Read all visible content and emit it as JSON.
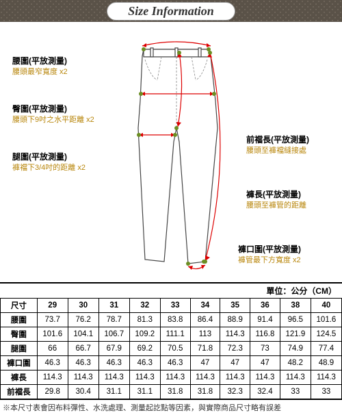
{
  "header": {
    "title": "Size Information"
  },
  "labels": {
    "waist": {
      "cn": "腰圍(平放測量)",
      "desc": "腰頭最窄寬度 x2"
    },
    "hip": {
      "cn": "臀圍(平放測量)",
      "desc": "腰頭下9吋之水平距離 x2"
    },
    "thigh": {
      "cn": "腿圍(平放測量)",
      "desc": "褲襠下3/4吋的距離 x2"
    },
    "rise": {
      "cn": "前襠長(平放測量)",
      "desc": "腰頭至褲襠縫接處"
    },
    "length": {
      "cn": "褲長(平放測量)",
      "desc": "腰頭至褲管的距離"
    },
    "hem": {
      "cn": "褲口圍(平放測量)",
      "desc": "褲管最下方寬度 x2"
    }
  },
  "unit_label": "單位：公分（CM）",
  "table": {
    "header_col": "尺寸",
    "sizes": [
      "29",
      "30",
      "31",
      "32",
      "33",
      "34",
      "35",
      "36",
      "38",
      "40"
    ],
    "rows": [
      {
        "name": "腰圍",
        "vals": [
          "73.7",
          "76.2",
          "78.7",
          "81.3",
          "83.8",
          "86.4",
          "88.9",
          "91.4",
          "96.5",
          "101.6"
        ]
      },
      {
        "name": "臀圍",
        "vals": [
          "101.6",
          "104.1",
          "106.7",
          "109.2",
          "111.1",
          "113",
          "114.3",
          "116.8",
          "121.9",
          "124.5"
        ]
      },
      {
        "name": "腿圍",
        "vals": [
          "66",
          "66.7",
          "67.9",
          "69.2",
          "70.5",
          "71.8",
          "72.3",
          "73",
          "74.9",
          "77.4"
        ]
      },
      {
        "name": "褲口圍",
        "vals": [
          "46.3",
          "46.3",
          "46.3",
          "46.3",
          "46.3",
          "47",
          "47",
          "47",
          "48.2",
          "48.9"
        ]
      },
      {
        "name": "褲長",
        "vals": [
          "114.3",
          "114.3",
          "114.3",
          "114.3",
          "114.3",
          "114.3",
          "114.3",
          "114.3",
          "114.3",
          "114.3"
        ]
      },
      {
        "name": "前襠長",
        "vals": [
          "29.8",
          "30.4",
          "31.1",
          "31.1",
          "31.8",
          "31.8",
          "32.3",
          "32.4",
          "33",
          "33"
        ]
      }
    ]
  },
  "footnote": "※本尺寸表會因布料彈性、水洗處理、測量起訖點等因素，與實際商品尺寸略有誤差"
}
